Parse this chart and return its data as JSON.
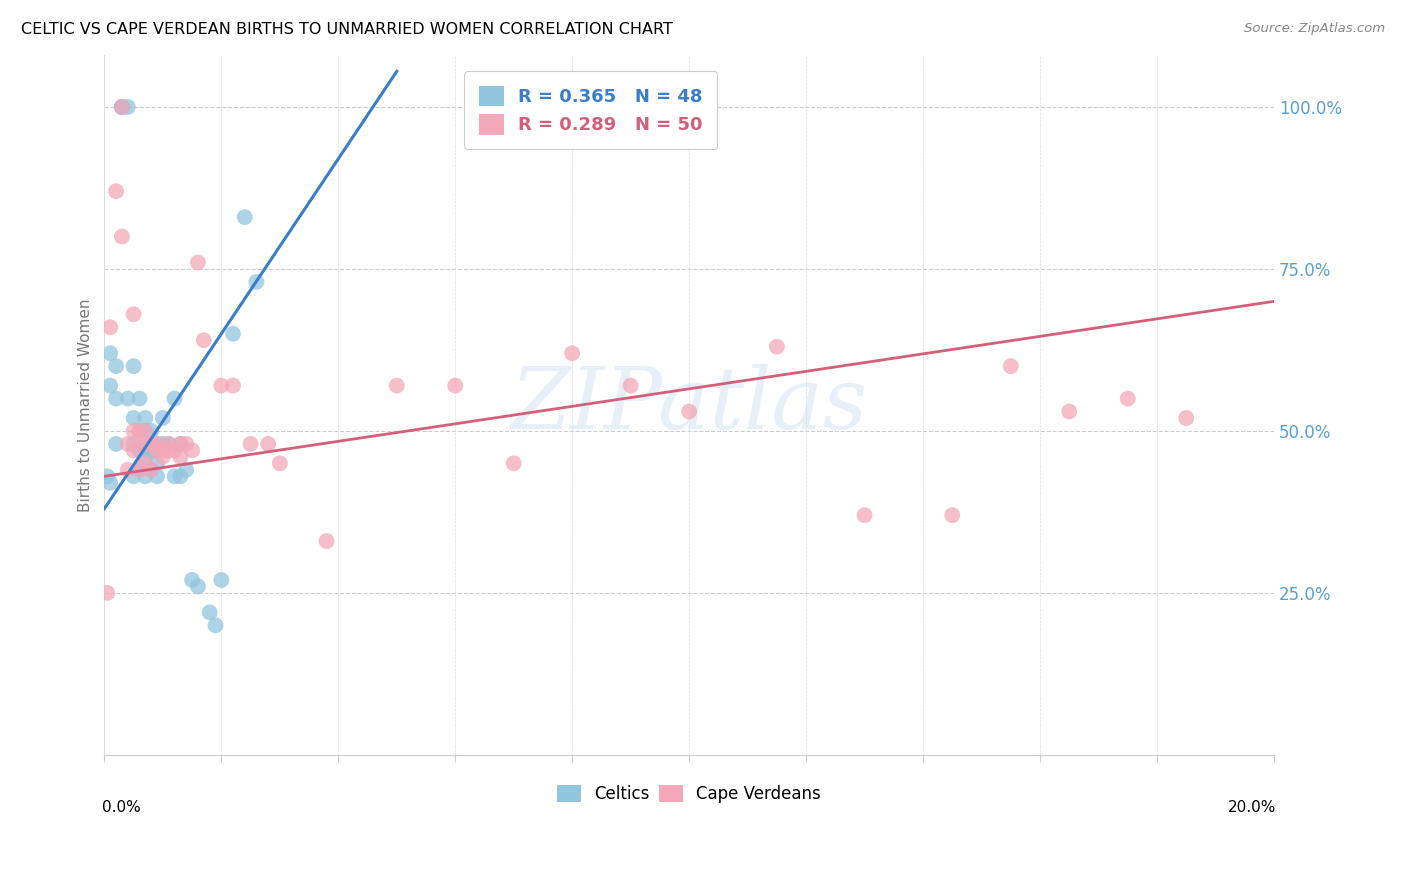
{
  "title": "CELTIC VS CAPE VERDEAN BIRTHS TO UNMARRIED WOMEN CORRELATION CHART",
  "source": "Source: ZipAtlas.com",
  "ylabel": "Births to Unmarried Women",
  "right_yticks": [
    "100.0%",
    "75.0%",
    "50.0%",
    "25.0%"
  ],
  "right_ytick_values": [
    1.0,
    0.75,
    0.5,
    0.25
  ],
  "blue_color": "#92c5de",
  "pink_color": "#f4a7b9",
  "blue_line_color": "#3a7eca",
  "pink_line_color": "#d45f7a",
  "watermark": "ZIPatlas",
  "blue_scatter_x": [
    0.0005,
    0.001,
    0.001,
    0.001,
    0.002,
    0.002,
    0.002,
    0.003,
    0.003,
    0.003,
    0.004,
    0.004,
    0.005,
    0.005,
    0.005,
    0.005,
    0.006,
    0.006,
    0.006,
    0.006,
    0.007,
    0.007,
    0.007,
    0.007,
    0.007,
    0.008,
    0.008,
    0.008,
    0.009,
    0.009,
    0.009,
    0.009,
    0.01,
    0.01,
    0.011,
    0.012,
    0.012,
    0.013,
    0.013,
    0.014,
    0.015,
    0.016,
    0.018,
    0.019,
    0.02,
    0.022,
    0.024,
    0.026
  ],
  "blue_scatter_y": [
    0.43,
    0.62,
    0.57,
    0.42,
    0.6,
    0.55,
    0.48,
    1.0,
    1.0,
    1.0,
    1.0,
    0.55,
    0.6,
    0.52,
    0.48,
    0.43,
    0.55,
    0.5,
    0.47,
    0.44,
    0.52,
    0.5,
    0.47,
    0.46,
    0.43,
    0.5,
    0.47,
    0.44,
    0.48,
    0.47,
    0.45,
    0.43,
    0.52,
    0.48,
    0.48,
    0.55,
    0.43,
    0.48,
    0.43,
    0.44,
    0.27,
    0.26,
    0.22,
    0.2,
    0.27,
    0.65,
    0.83,
    0.73
  ],
  "pink_scatter_x": [
    0.0005,
    0.001,
    0.002,
    0.003,
    0.003,
    0.004,
    0.004,
    0.005,
    0.005,
    0.005,
    0.006,
    0.006,
    0.006,
    0.007,
    0.007,
    0.007,
    0.008,
    0.008,
    0.009,
    0.009,
    0.01,
    0.01,
    0.011,
    0.011,
    0.012,
    0.013,
    0.013,
    0.014,
    0.015,
    0.016,
    0.017,
    0.02,
    0.022,
    0.025,
    0.028,
    0.03,
    0.038,
    0.05,
    0.06,
    0.07,
    0.08,
    0.09,
    0.1,
    0.115,
    0.13,
    0.145,
    0.155,
    0.165,
    0.175,
    0.185
  ],
  "pink_scatter_y": [
    0.25,
    0.66,
    0.87,
    1.0,
    0.8,
    0.48,
    0.44,
    0.68,
    0.5,
    0.47,
    0.5,
    0.48,
    0.44,
    0.5,
    0.48,
    0.45,
    0.48,
    0.44,
    0.48,
    0.47,
    0.47,
    0.46,
    0.48,
    0.47,
    0.47,
    0.46,
    0.48,
    0.48,
    0.47,
    0.76,
    0.64,
    0.57,
    0.57,
    0.48,
    0.48,
    0.45,
    0.33,
    0.57,
    0.57,
    0.45,
    0.62,
    0.57,
    0.53,
    0.63,
    0.37,
    0.37,
    0.6,
    0.53,
    0.55,
    0.52
  ],
  "blue_line_x": [
    0.0,
    0.05
  ],
  "blue_line_y_intercept": 0.38,
  "blue_line_slope": 13.5,
  "pink_line_x": [
    0.0,
    0.2
  ],
  "pink_line_y_intercept": 0.43,
  "pink_line_slope": 1.35,
  "xlim": [
    0.0,
    0.2
  ],
  "ylim": [
    0.0,
    1.08
  ]
}
